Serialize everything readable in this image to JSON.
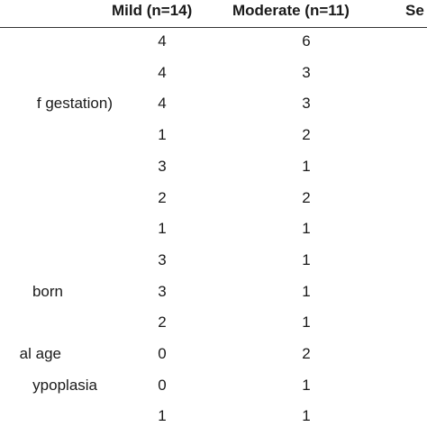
{
  "table": {
    "header": [
      "Mild (n=14)",
      "Moderate (n=11)",
      "Se"
    ],
    "rows": [
      {
        "mild": 4,
        "moderate": 6
      },
      {
        "mild": 4,
        "moderate": 3
      },
      {
        "label": "f gestation)",
        "mild": 4,
        "moderate": 3
      },
      {
        "mild": 1,
        "moderate": 2
      },
      {
        "mild": 3,
        "moderate": 1
      },
      {
        "mild": 2,
        "moderate": 2
      },
      {
        "mild": 1,
        "moderate": 1
      },
      {
        "mild": 3,
        "moderate": 1
      },
      {
        "label": "born",
        "mild": 3,
        "moderate": 1
      },
      {
        "mild": 2,
        "moderate": 1
      },
      {
        "label": "al age",
        "mild": 0,
        "moderate": 2
      },
      {
        "label": "ypoplasia",
        "mild": 0,
        "moderate": 1
      },
      {
        "mild": 1,
        "moderate": 1
      }
    ]
  }
}
